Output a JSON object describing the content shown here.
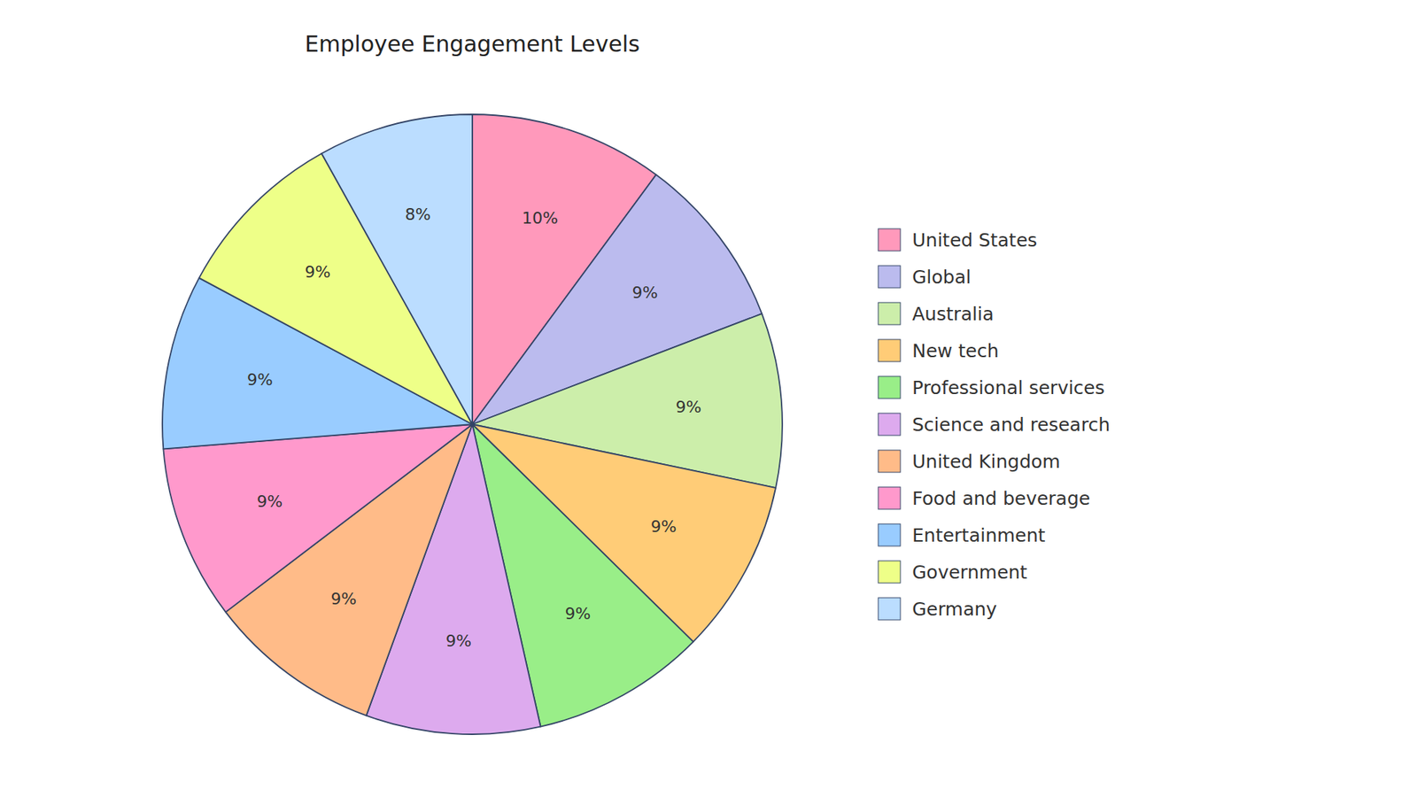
{
  "chart_data": {
    "type": "pie",
    "title": "Employee Engagement Levels",
    "categories": [
      "United States",
      "Global",
      "Australia",
      "New tech",
      "Professional services",
      "Science and research",
      "United Kingdom",
      "Food and beverage",
      "Entertainment",
      "Government",
      "Germany"
    ],
    "values": [
      10,
      9,
      9,
      9,
      9,
      9,
      9,
      9,
      9,
      9,
      8
    ],
    "value_labels": [
      "10%",
      "9%",
      "9%",
      "9%",
      "9%",
      "9%",
      "9%",
      "9%",
      "9%",
      "9%",
      "8%"
    ],
    "colors": [
      "#FF99BB",
      "#BBBBEE",
      "#CCEEAA",
      "#FFCC77",
      "#99EE88",
      "#DDAAEE",
      "#FFBB88",
      "#FF99CC",
      "#99CCFF",
      "#EEFF88",
      "#BBDDFF"
    ],
    "data_labels": true,
    "legend": "right"
  }
}
